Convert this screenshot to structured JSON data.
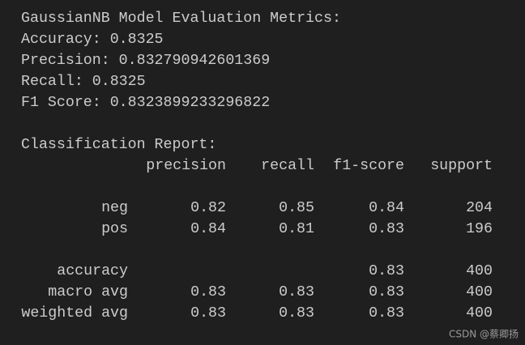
{
  "output": {
    "title": "GaussianNB Model Evaluation Metrics:",
    "metrics": [
      "Accuracy: 0.8325",
      "Precision: 0.832790942601369",
      "Recall: 0.8325",
      "F1 Score: 0.8323899233296822"
    ],
    "report": {
      "title": "Classification Report:",
      "columns": [
        "precision",
        "recall",
        "f1-score",
        "support"
      ],
      "rows": [
        {
          "label": "neg",
          "cells": [
            0.82,
            0.85,
            0.84,
            204
          ]
        },
        {
          "label": "pos",
          "cells": [
            0.84,
            0.81,
            0.83,
            196
          ]
        },
        {
          "label": "accuracy",
          "cells": [
            null,
            null,
            0.83,
            400
          ]
        },
        {
          "label": "macro avg",
          "cells": [
            0.83,
            0.83,
            0.83,
            400
          ]
        },
        {
          "label": "weighted avg",
          "cells": [
            0.83,
            0.83,
            0.83,
            400
          ]
        }
      ]
    },
    "watermark": "CSDN @蔡卿扬"
  }
}
